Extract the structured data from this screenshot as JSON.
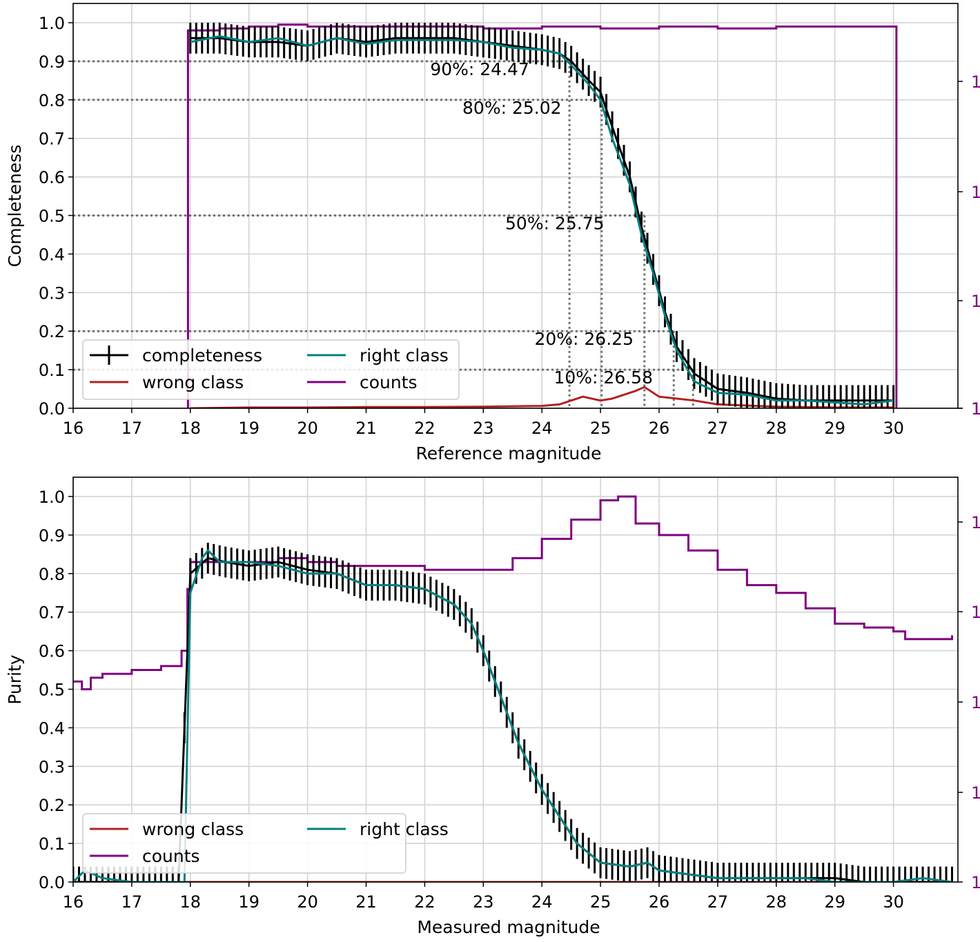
{
  "chart_data": [
    {
      "type": "line",
      "xlabel": "Reference magnitude",
      "ylabel": "Completeness",
      "xlim": [
        16,
        31.1
      ],
      "ylim": [
        0,
        1.05
      ],
      "xticks": [
        "16",
        "17",
        "18",
        "19",
        "20",
        "21",
        "22",
        "23",
        "24",
        "25",
        "26",
        "27",
        "28",
        "29",
        "30"
      ],
      "yticks": [
        "0.0",
        "0.1",
        "0.2",
        "0.3",
        "0.4",
        "0.5",
        "0.6",
        "0.7",
        "0.8",
        "0.9",
        "1.0"
      ],
      "right_axis": {
        "color": "#800080",
        "tick_labels": [
          "1",
          "1",
          "1",
          "1",
          "1"
        ]
      },
      "grid": true,
      "legend": {
        "placement": "lower-left",
        "columns": 2,
        "entries": [
          {
            "label": "completeness",
            "color": "#000000"
          },
          {
            "label": "right class",
            "color": "#008080"
          },
          {
            "label": "wrong class",
            "color": "#b22222"
          },
          {
            "label": "counts",
            "color": "#800080"
          }
        ]
      },
      "annotations": [
        {
          "label": "90%: 24.47",
          "level": 0.9,
          "mag": 24.47
        },
        {
          "label": "80%: 25.02",
          "level": 0.8,
          "mag": 25.02
        },
        {
          "label": "50%: 25.75",
          "level": 0.5,
          "mag": 25.75
        },
        {
          "label": "20%: 26.25",
          "level": 0.2,
          "mag": 26.25
        },
        {
          "label": "10%: 26.58",
          "level": 0.1,
          "mag": 26.58
        }
      ],
      "completeness": {
        "x": [
          18,
          18.5,
          19,
          19.5,
          20,
          20.5,
          21,
          21.5,
          22,
          22.5,
          23,
          23.5,
          24,
          24.3,
          24.5,
          24.8,
          25,
          25.2,
          25.5,
          25.7,
          25.9,
          26.1,
          26.3,
          26.6,
          27,
          27.5,
          28,
          28.5,
          29,
          29.5,
          30
        ],
        "y": [
          0.96,
          0.96,
          0.95,
          0.95,
          0.94,
          0.96,
          0.95,
          0.96,
          0.96,
          0.96,
          0.95,
          0.94,
          0.93,
          0.92,
          0.9,
          0.85,
          0.82,
          0.73,
          0.6,
          0.47,
          0.36,
          0.25,
          0.16,
          0.09,
          0.05,
          0.04,
          0.025,
          0.02,
          0.02,
          0.02,
          0.02
        ],
        "error": 0.04
      },
      "right_class": {
        "x": [
          18,
          18.5,
          19,
          19.5,
          20,
          20.5,
          21,
          21.5,
          22,
          22.5,
          23,
          23.5,
          24,
          24.3,
          24.5,
          24.8,
          25,
          25.2,
          25.5,
          25.7,
          25.9,
          26.1,
          26.3,
          26.6,
          27,
          27.5,
          28,
          28.5,
          29,
          29.5,
          30
        ],
        "y": [
          0.95,
          0.965,
          0.95,
          0.96,
          0.94,
          0.96,
          0.945,
          0.955,
          0.955,
          0.955,
          0.95,
          0.935,
          0.93,
          0.92,
          0.89,
          0.84,
          0.8,
          0.7,
          0.58,
          0.45,
          0.35,
          0.24,
          0.15,
          0.07,
          0.04,
          0.035,
          0.02,
          0.02,
          0.015,
          0.01,
          0.02
        ]
      },
      "wrong_class": {
        "x": [
          18,
          19,
          20,
          21,
          22,
          23,
          24,
          24.3,
          24.5,
          24.7,
          25,
          25.2,
          25.4,
          25.6,
          25.75,
          26,
          26.3,
          26.6,
          27,
          28,
          29,
          30
        ],
        "y": [
          0.0,
          0.002,
          0.002,
          0.003,
          0.003,
          0.004,
          0.006,
          0.01,
          0.02,
          0.03,
          0.02,
          0.025,
          0.035,
          0.045,
          0.055,
          0.03,
          0.025,
          0.02,
          0.01,
          0.004,
          0.002,
          0.002
        ]
      },
      "counts": {
        "x": [
          17.95,
          17.96,
          18.5,
          19,
          19.5,
          20,
          21,
          22,
          23,
          24,
          25,
          26,
          27,
          28,
          29,
          29.95,
          30.05
        ],
        "y": [
          0.0,
          0.98,
          0.985,
          0.99,
          0.995,
          0.99,
          0.99,
          0.99,
          0.985,
          0.99,
          0.985,
          0.99,
          0.985,
          0.99,
          0.99,
          0.99,
          0.0
        ]
      }
    },
    {
      "type": "line",
      "xlabel": "Measured magnitude",
      "ylabel": "Purity",
      "xlim": [
        16,
        31.1
      ],
      "ylim": [
        0,
        1.05
      ],
      "xticks": [
        "16",
        "17",
        "18",
        "19",
        "20",
        "21",
        "22",
        "23",
        "24",
        "25",
        "26",
        "27",
        "28",
        "29",
        "30"
      ],
      "yticks": [
        "0.0",
        "0.1",
        "0.2",
        "0.3",
        "0.4",
        "0.5",
        "0.6",
        "0.7",
        "0.8",
        "0.9",
        "1.0"
      ],
      "right_axis": {
        "color": "#800080",
        "tick_labels": [
          "1",
          "1",
          "1",
          "1",
          "1"
        ]
      },
      "grid": true,
      "legend": {
        "placement": "lower-left",
        "columns": 2,
        "entries": [
          {
            "label": "wrong class",
            "color": "#b22222"
          },
          {
            "label": "right class",
            "color": "#008080"
          },
          {
            "label": "counts",
            "color": "#800080"
          }
        ]
      },
      "purity": {
        "x": [
          16,
          16.3,
          16.6,
          17,
          17.5,
          17.8,
          18,
          18.3,
          18.6,
          19,
          19.5,
          20,
          20.5,
          21,
          21.5,
          22,
          22.5,
          22.8,
          23,
          23.3,
          23.6,
          24,
          24.3,
          24.6,
          25,
          25.5,
          25.8,
          26,
          26.5,
          27,
          27.5,
          28,
          28.5,
          29,
          29.5,
          30,
          30.5,
          31
        ],
        "y": [
          0.0,
          0.0,
          0.0,
          0.0,
          0.0,
          0.0,
          0.8,
          0.84,
          0.83,
          0.82,
          0.83,
          0.81,
          0.8,
          0.77,
          0.77,
          0.76,
          0.72,
          0.67,
          0.6,
          0.48,
          0.36,
          0.24,
          0.17,
          0.1,
          0.05,
          0.04,
          0.05,
          0.03,
          0.02,
          0.01,
          0.01,
          0.01,
          0.01,
          0.01,
          0.0,
          0.0,
          0.0,
          0.0
        ],
        "error": 0.04
      },
      "right_class": {
        "x": [
          16,
          16.2,
          16.5,
          17,
          17.5,
          17.9,
          18,
          18.2,
          18.3,
          18.5,
          19,
          19.5,
          20,
          20.5,
          21,
          21.5,
          22,
          22.5,
          22.8,
          23,
          23.3,
          23.6,
          24,
          24.3,
          24.6,
          25,
          25.5,
          25.8,
          26,
          26.5,
          27,
          27.5,
          28,
          28.5,
          29,
          29.5,
          30,
          30.5,
          31
        ],
        "y": [
          0.0,
          0.03,
          0.01,
          0.0,
          0.0,
          0.0,
          0.75,
          0.84,
          0.86,
          0.83,
          0.83,
          0.82,
          0.8,
          0.8,
          0.77,
          0.77,
          0.76,
          0.72,
          0.67,
          0.6,
          0.48,
          0.36,
          0.24,
          0.17,
          0.1,
          0.05,
          0.04,
          0.05,
          0.03,
          0.02,
          0.01,
          0.01,
          0.01,
          0.01,
          0.0,
          0.0,
          0.0,
          0.01,
          0.0
        ]
      },
      "wrong_class": {
        "x": [
          16,
          31
        ],
        "y": [
          0.0,
          0.0
        ]
      },
      "counts": {
        "x": [
          16,
          16.15,
          16.3,
          16.5,
          17,
          17.5,
          17.85,
          17.95,
          18,
          18.5,
          19,
          19.5,
          20,
          20.5,
          21,
          21.5,
          22,
          22.5,
          23,
          23.5,
          24,
          24.5,
          25,
          25.3,
          25.6,
          26,
          26.5,
          27,
          27.5,
          28,
          28.5,
          29,
          29.5,
          30,
          30.2,
          31
        ],
        "y": [
          0.52,
          0.5,
          0.53,
          0.54,
          0.55,
          0.56,
          0.6,
          0.76,
          0.83,
          0.83,
          0.83,
          0.84,
          0.83,
          0.82,
          0.82,
          0.82,
          0.81,
          0.81,
          0.81,
          0.84,
          0.89,
          0.94,
          0.99,
          1.0,
          0.93,
          0.9,
          0.86,
          0.81,
          0.77,
          0.75,
          0.71,
          0.67,
          0.66,
          0.65,
          0.63,
          0.64
        ]
      }
    }
  ]
}
